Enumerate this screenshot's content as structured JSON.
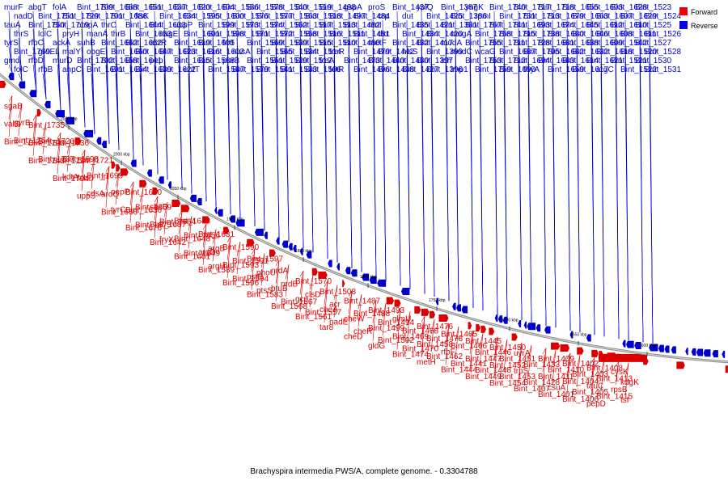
{
  "caption": "Brachyspira intermedia PWS/A, complete genome. - 0.3304788",
  "legend": {
    "forward": {
      "label": "Forward",
      "color": "#ee0000"
    },
    "reverse": {
      "label": "Reverse",
      "color": "#0000ee"
    }
  },
  "strand_colors": {
    "forward": "#dd0000",
    "reverse": "#0000cc",
    "backbone": "#888888"
  },
  "ticks": [
    "2050 kbp",
    "2000 kbp",
    "1950 kbp",
    "1900 kbp",
    "1850 kbp",
    "1800 kbp",
    "1750 kbp",
    "1700 kbp",
    "1650 kbp",
    "1600 kbp"
  ],
  "reverse_labels": [
    "murF",
    "nadD",
    "tauA",
    "thrS",
    "tyrS",
    "Bint_1769",
    "gmd",
    "folC",
    "abgT",
    "Bint_1751",
    "Bint_1750",
    "lolC",
    "rfbC",
    "groEL",
    "rfbD",
    "rfbB",
    "folA",
    "Bint_1729",
    "Bint_1719",
    "pryH",
    "ackA",
    "malY",
    "murD",
    "ahpC",
    "Bint_1709",
    "Bint_1701",
    "ompA",
    "manA",
    "suhB",
    "obgE",
    "Bint_1702",
    "Bint_1691",
    "Bint_1688",
    "Bint_1686",
    "thrC",
    "thrB",
    "Bint_1662",
    "Bint_1660",
    "Bint_1658",
    "Bint_1654",
    "Bint_1651",
    "ftsK",
    "Bint_1644",
    "Bint_1653",
    "Bint_1652",
    "Bint_1647",
    "Bint_1641",
    "Bint_1639",
    "Bint_1637",
    "Bint_1634",
    "Bint_1633",
    "nagE",
    "acrR",
    "Bint_1623",
    "pep",
    "Bint_1622",
    "Bint_1620",
    "Bint_1595",
    "uppP",
    "Bint_1601",
    "Bint_1619",
    "Bint_1616",
    "Bint_1615",
    "eutT",
    "Bint_1604",
    "Bint_1600",
    "Bint_1599",
    "Bint_1598",
    "Bint_1605",
    "Bint_1602",
    "Bint_1588",
    "Bint_1587",
    "Bint_1586",
    "Bint_1576",
    "Bint_1573",
    "Bint_1571",
    "fmt",
    "nusA",
    "purB",
    "Bint_1579",
    "Bint_1578",
    "Bint_1577",
    "Bint_1574",
    "Bint_1572",
    "Bint_1569",
    "Bint_1565",
    "Bint_1551",
    "Bint_1541",
    "Bint_1540",
    "Bint_1563",
    "Bint_1562",
    "Bint_1558",
    "Bint_1539",
    "Bint_1534",
    "Bint_1529",
    "Bint_1533",
    "Bint_1519",
    "Bint_1518",
    "Bint_1517",
    "Bint_1516",
    "Bint_1515",
    "Bint_1514",
    "Bint_1512",
    "Bint_1506",
    "Bint_1498",
    "Bint_1497",
    "Bint_1513",
    "Bint_1511",
    "Bint_1510",
    "treR",
    "treA",
    "tetR",
    "gspA",
    "Bint_1484",
    "Bint_1482",
    "Bint_1481",
    "Bint_1480",
    "Bint_1479",
    "Bint_1473",
    "Bint_1496",
    "proS",
    "crp",
    "rimI",
    "dxr",
    "metF",
    "Bint_1442",
    "Bint_1440",
    "Bint_1438",
    "Bint_1437",
    "dut",
    "Bint_1435",
    "Bint_1434",
    "Bint_1432",
    "hisS",
    "Bint_1430",
    "Bint_1427",
    "yplQ",
    "Bint_1425",
    "Bint_1421",
    "Bint_1420",
    "Bint_1417",
    "Bint_1399",
    "Bint_1397",
    "Bint_1396",
    "Bint_1387",
    "Bint_1386",
    "Bint_1381",
    "mogA",
    "modA",
    "modC",
    "ldh",
    "lmp1",
    "yngK",
    "rpmI",
    "Bint_1767",
    "Bint_1758",
    "Bint_1755",
    "wcaG",
    "Bint_1753",
    "Bint_1759",
    "Bint_1740",
    "Bint_1731",
    "Bint_1741",
    "Bint_1715",
    "Bint_1711",
    "Bint_1687",
    "Bint_1712",
    "Bint_1690",
    "Bint_1717",
    "Bint_1713",
    "Bint_1693",
    "Bint_1738",
    "Bint_1728",
    "Bint_1705",
    "Bint_1694",
    "thyA",
    "Bint_1718",
    "Bint_1679",
    "Bint_1674",
    "Bint_1680",
    "Bint_1681",
    "Bint_1682",
    "Bint_1683",
    "Bint_1659",
    "Bint_1655",
    "Bint_1663",
    "Bint_1645",
    "Bint_1646",
    "Bint_1638",
    "Bint_1632",
    "Bint_1614",
    "Bint_1617",
    "Bint_1603",
    "Bint_1607",
    "Bint_1612",
    "Bint_1608",
    "Bint_1609",
    "Bint_1618",
    "Bint_1621",
    "argC",
    "Bint_1628",
    "Bint_1629",
    "Bint_1610",
    "Bint_1611",
    "Bint_1542",
    "Bint_1520",
    "Bint_1521",
    "Bint_1522",
    "Bint_1523",
    "Bint_1524",
    "Bint_1525",
    "Bint_1526",
    "Bint_1527",
    "Bint_1528",
    "Bint_1530",
    "Bint_1531"
  ],
  "forward_labels": [
    "sgaB",
    "gyrB",
    "valS",
    "Bint_1754",
    "Bint_1742",
    "Bint_1735",
    "Bint_1720",
    "Bint_1700",
    "Bint_1737",
    "Bint_1743",
    "Bint_1736",
    "Bint_1698",
    "Bint_1714",
    "kdtA",
    "Bint_1704",
    "Bint_1721",
    "Bint_1699",
    "fabD",
    "cdsA",
    "uppS",
    "frr",
    "pepP",
    "aroQ",
    "tyrC",
    "Bint_1666",
    "Bint_1650",
    "Bint_1669",
    "Bint_1636",
    "Bint_1675",
    "Bint_1676",
    "sbcD",
    "Bint_1664",
    "Bint_1667",
    "fryX",
    "Bint_1642",
    "Bint_1643",
    "Bint_1656",
    "Bint_1648",
    "Bint_1649",
    "Bint_1661",
    "Bint_1631",
    "argB",
    "argD",
    "argH",
    "Bint_1589",
    "Bint_1590",
    "Bint_1591",
    "Bint_1593",
    "Bint_1594",
    "Bint_1596",
    "Bint_1597",
    "phoU",
    "pstB",
    "ptsS",
    "Bint_1583",
    "nrdA",
    "nrdB",
    "btuB",
    "Bint_1567",
    "Bint_1568",
    "Bint_1570",
    "clsD",
    "gcp",
    "Bint_1557",
    "Bint_1561",
    "Bint_1508",
    "acr",
    "cheA",
    "nadE",
    "tar8",
    "Bint_1487",
    "Bint_1488",
    "cheW",
    "cheR",
    "cheD",
    "Bint_1493",
    "Bint_1494",
    "Bint_1499",
    "Bint_1502",
    "gldG",
    "glmU",
    "Bint_1468",
    "Bint_1469",
    "Bint_1470",
    "Bint_1474",
    "Bint_1476",
    "Bint_1478",
    "Bint_1458",
    "Bint_1462",
    "metH",
    "Bint_1465",
    "Bint_1466",
    "rfbF",
    "Bint_1441",
    "Bint_1444",
    "Bint_1445",
    "Bint_1446",
    "Bint_1447",
    "Bint_1448",
    "Bint_1449",
    "Bint_1450",
    "Bint_1451",
    "Bint_1452",
    "Bint_1453",
    "Bint_1454",
    "uvrA",
    "Bint_1433",
    "trpS",
    "Bint_1428",
    "Bint_1407",
    "Bint_1409",
    "Bint_1410",
    "Bint_1411",
    "csuA",
    "Bint_1401",
    "Bint_1402",
    "Bint_1403",
    "Bint_1404",
    "Bint_1405",
    "Bint_1406",
    "Bint_1408",
    "Bint_1413",
    "tauC",
    "Bint_1415",
    "pepD",
    "cysK",
    "kdgK",
    "rpsB",
    "tsf"
  ],
  "legend_position": "top-right"
}
